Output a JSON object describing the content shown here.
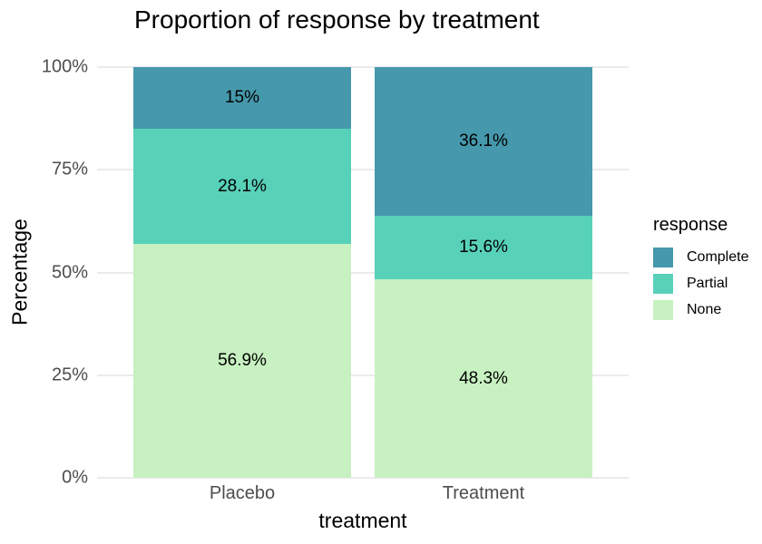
{
  "chart_data": {
    "type": "bar",
    "subtype": "stacked-percent",
    "title": "Proportion of response by treatment",
    "xlabel": "treatment",
    "ylabel": "Percentage",
    "legend_title": "response",
    "legend_position": "right",
    "categories": [
      "Placebo",
      "Treatment"
    ],
    "series": [
      {
        "name": "Complete",
        "color": "#4698ac",
        "values": [
          15,
          36.1
        ],
        "labels": [
          "15%",
          "36.1%"
        ]
      },
      {
        "name": "Partial",
        "color": "#58d1b9",
        "values": [
          28.1,
          15.6
        ],
        "labels": [
          "28.1%",
          "15.6%"
        ]
      },
      {
        "name": "None",
        "color": "#c7f1c0",
        "values": [
          56.9,
          48.3
        ],
        "labels": [
          "56.9%",
          "48.3%"
        ]
      }
    ],
    "y_ticks": [
      {
        "label": "0%",
        "value": 0
      },
      {
        "label": "25%",
        "value": 25
      },
      {
        "label": "50%",
        "value": 50
      },
      {
        "label": "75%",
        "value": 75
      },
      {
        "label": "100%",
        "value": 100
      }
    ],
    "ylim": [
      0,
      100
    ],
    "grid": "horizontal-major",
    "grid_color": "#ebebeb",
    "tick_text_color": "#4d4d4d"
  }
}
